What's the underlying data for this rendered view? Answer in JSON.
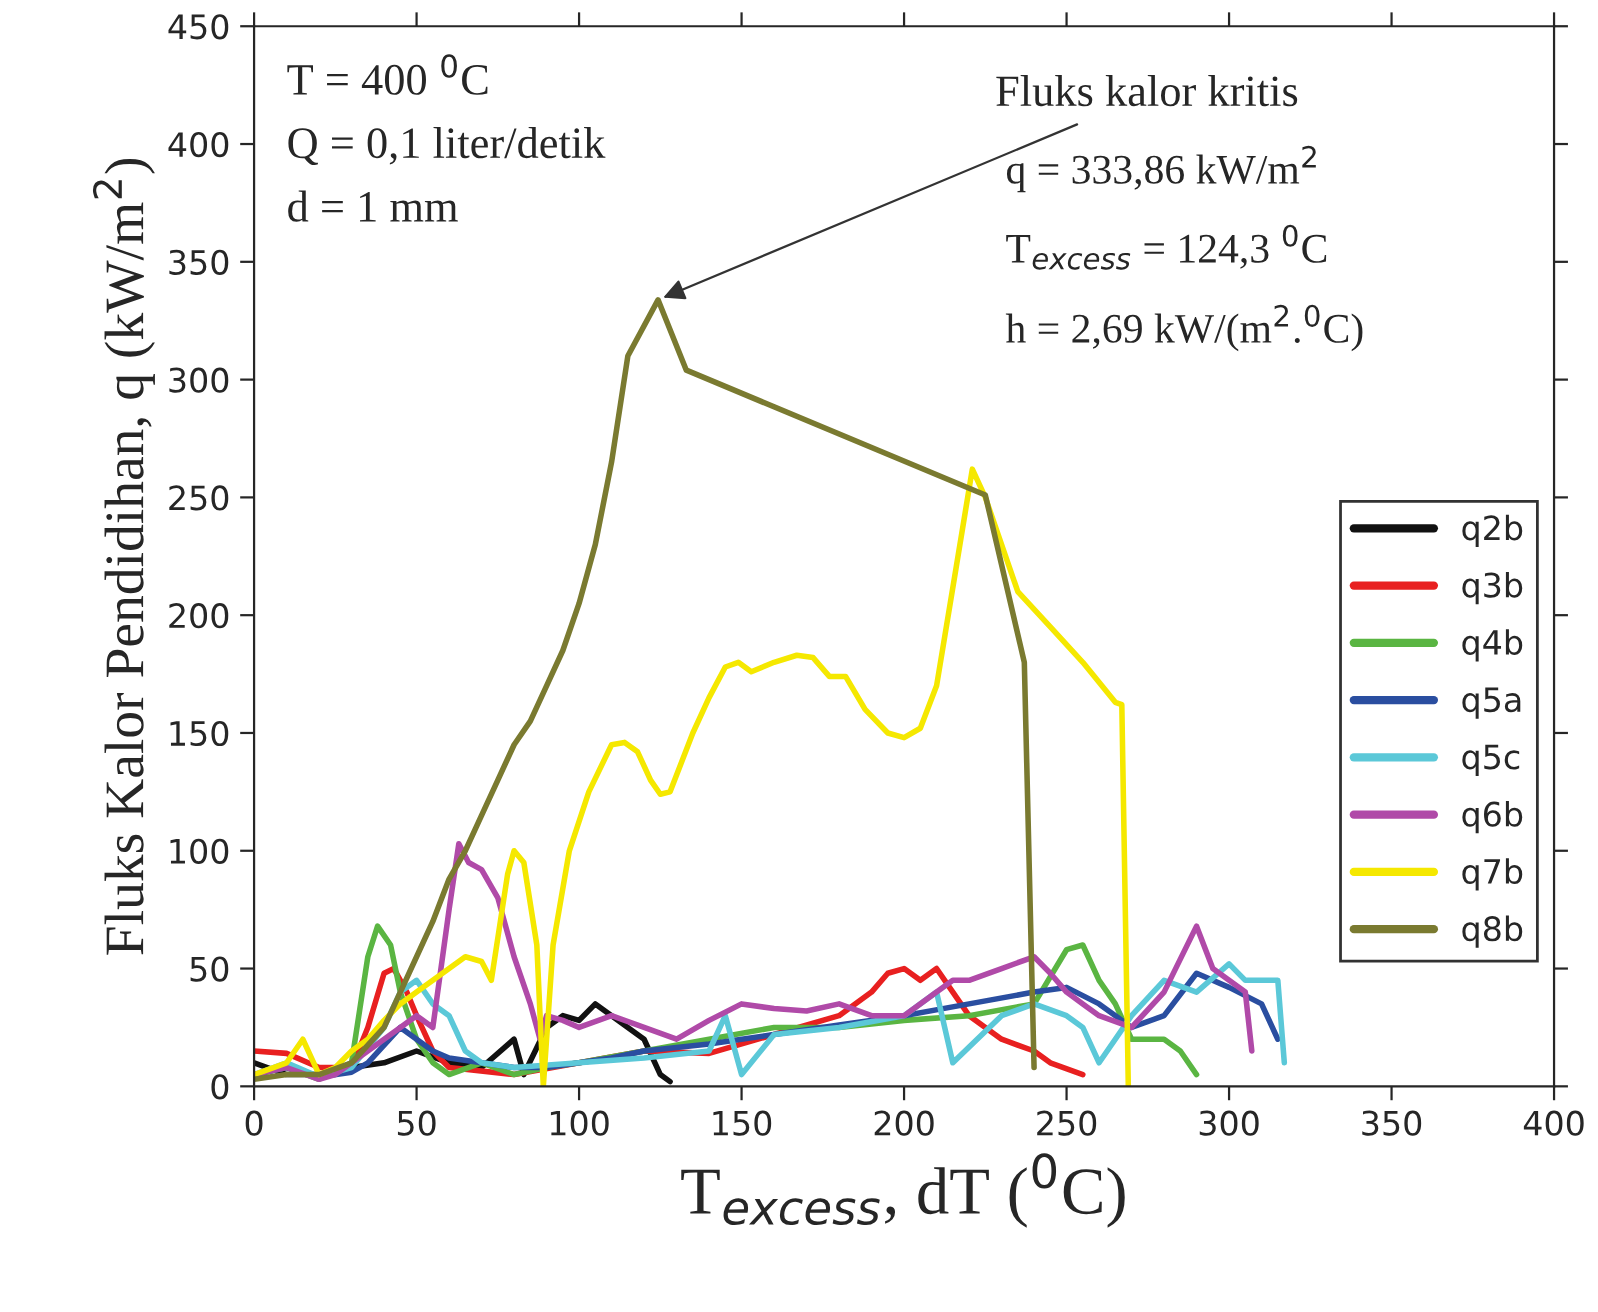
{
  "chart_data": {
    "type": "line",
    "xlabel": "T$_{excess}$, dT ($^{0}$C)",
    "ylabel": "Fluks Kalor Pendidihan, q (kW/m$^{2}$)",
    "xlim": [
      0,
      400
    ],
    "xticks": [
      0,
      50,
      100,
      150,
      200,
      250,
      300,
      350,
      400
    ],
    "ylim": [
      0,
      450
    ],
    "yticks": [
      0,
      50,
      100,
      150,
      200,
      250,
      300,
      350,
      400,
      450
    ],
    "grid": false,
    "legend": "right",
    "marker": "none",
    "line_style": "solid",
    "annotations": [
      "T = 400 $^{0}$C",
      "Q = 0,1 liter/detik",
      "d = 1 mm",
      {
        "text": "Fluks kalor kritis",
        "x": 124.3,
        "y": 333.86
      },
      "q = 333,86 kW/m$^{2}$",
      "T$_{excess}$ = 124,3 $^{0}$C",
      "h = 2,69 kW/(m$^{2}$.$^{0}$C)"
    ],
    "series": [
      {
        "name": "q2b",
        "color": "#111111",
        "x": [
          0,
          10,
          20,
          30,
          40,
          50,
          60,
          70,
          80,
          83,
          90,
          95,
          100,
          105,
          110,
          115,
          120,
          125,
          128
        ],
        "values": [
          10,
          5,
          5,
          8,
          10,
          15,
          10,
          8,
          20,
          5,
          25,
          30,
          28,
          35,
          30,
          25,
          20,
          5,
          2
        ]
      },
      {
        "name": "q3b",
        "color": "#e82020",
        "x": [
          0,
          10,
          20,
          30,
          35,
          40,
          43,
          47,
          50,
          55,
          60,
          80,
          100,
          120,
          140,
          160,
          180,
          190,
          195,
          200,
          205,
          210,
          215,
          220,
          230,
          240,
          245,
          255
        ],
        "values": [
          15,
          14,
          8,
          8,
          25,
          48,
          50,
          40,
          30,
          15,
          8,
          5,
          10,
          15,
          14,
          22,
          30,
          40,
          48,
          50,
          45,
          50,
          40,
          30,
          20,
          15,
          10,
          5
        ]
      },
      {
        "name": "q4b",
        "color": "#5ab542",
        "x": [
          0,
          10,
          20,
          30,
          35,
          38,
          42,
          45,
          50,
          55,
          60,
          70,
          80,
          90,
          100,
          120,
          140,
          160,
          180,
          200,
          220,
          240,
          250,
          255,
          260,
          265,
          270,
          280,
          285,
          290
        ],
        "values": [
          5,
          8,
          3,
          10,
          55,
          68,
          60,
          40,
          20,
          10,
          5,
          10,
          5,
          8,
          10,
          15,
          20,
          25,
          25,
          28,
          30,
          35,
          58,
          60,
          45,
          35,
          20,
          20,
          15,
          5
        ]
      },
      {
        "name": "q5a",
        "color": "#2a4ea0",
        "x": [
          0,
          10,
          20,
          30,
          35,
          45,
          50,
          55,
          60,
          70,
          80,
          90,
          100,
          110,
          120,
          140,
          160,
          180,
          200,
          220,
          240,
          250,
          260,
          270,
          280,
          290,
          300,
          310,
          315
        ],
        "values": [
          5,
          8,
          4,
          6,
          10,
          25,
          20,
          15,
          12,
          10,
          8,
          8,
          10,
          12,
          15,
          18,
          22,
          26,
          30,
          35,
          40,
          42,
          35,
          25,
          30,
          48,
          42,
          35,
          20
        ]
      },
      {
        "name": "q5c",
        "color": "#5bc8d8",
        "x": [
          0,
          10,
          20,
          30,
          40,
          45,
          50,
          55,
          60,
          65,
          70,
          80,
          100,
          120,
          140,
          145,
          150,
          160,
          180,
          200,
          210,
          215,
          230,
          240,
          250,
          255,
          260,
          270,
          280,
          290,
          300,
          305,
          315,
          317
        ],
        "values": [
          5,
          10,
          4,
          8,
          25,
          40,
          45,
          35,
          30,
          15,
          10,
          8,
          10,
          12,
          15,
          30,
          5,
          22,
          25,
          30,
          40,
          10,
          30,
          35,
          30,
          25,
          10,
          30,
          45,
          40,
          52,
          45,
          45,
          10
        ]
      },
      {
        "name": "q6b",
        "color": "#b04aa8",
        "x": [
          0,
          10,
          20,
          25,
          30,
          40,
          45,
          50,
          55,
          60,
          63,
          66,
          70,
          75,
          80,
          85,
          88,
          90,
          95,
          100,
          110,
          120,
          130,
          140,
          150,
          160,
          170,
          180,
          190,
          200,
          210,
          215,
          220,
          230,
          240,
          245,
          250,
          255,
          260,
          270,
          280,
          290,
          295,
          305,
          307
        ],
        "values": [
          5,
          8,
          3,
          5,
          10,
          20,
          25,
          30,
          25,
          75,
          103,
          95,
          92,
          80,
          55,
          35,
          20,
          30,
          28,
          25,
          30,
          25,
          20,
          28,
          35,
          33,
          32,
          35,
          30,
          30,
          40,
          45,
          45,
          50,
          55,
          48,
          40,
          35,
          30,
          25,
          40,
          68,
          50,
          40,
          15
        ]
      },
      {
        "name": "q7b",
        "color": "#f5e800",
        "x": [
          0,
          10,
          15,
          20,
          25,
          30,
          35,
          40,
          45,
          50,
          55,
          60,
          65,
          70,
          73,
          78,
          80,
          83,
          87,
          89,
          92,
          97,
          103,
          110,
          114,
          118,
          122,
          125,
          128,
          135,
          140,
          145,
          149,
          153,
          160,
          167,
          172,
          177,
          182,
          188,
          195,
          200,
          205,
          210,
          216,
          221,
          225,
          235,
          245,
          255,
          265,
          267,
          269
        ],
        "values": [
          5,
          10,
          20,
          5,
          8,
          15,
          20,
          28,
          35,
          40,
          45,
          50,
          55,
          53,
          45,
          90,
          100,
          95,
          60,
          0,
          60,
          100,
          125,
          145,
          146,
          142,
          130,
          124,
          125,
          150,
          165,
          178,
          180,
          176,
          180,
          183,
          182,
          174,
          174,
          160,
          150,
          148,
          152,
          170,
          220,
          262,
          250,
          210,
          195,
          180,
          163,
          162,
          0
        ]
      },
      {
        "name": "q8b",
        "color": "#7a7a30",
        "x": [
          0,
          10,
          20,
          30,
          40,
          45,
          50,
          55,
          60,
          65,
          70,
          75,
          80,
          85,
          90,
          95,
          100,
          105,
          110,
          115,
          124.3,
          133,
          225,
          237,
          240
        ],
        "values": [
          3,
          5,
          5,
          10,
          25,
          40,
          55,
          70,
          88,
          100,
          115,
          130,
          145,
          155,
          170,
          185,
          205,
          230,
          265,
          310,
          333.86,
          304,
          251,
          180,
          8
        ]
      }
    ]
  }
}
